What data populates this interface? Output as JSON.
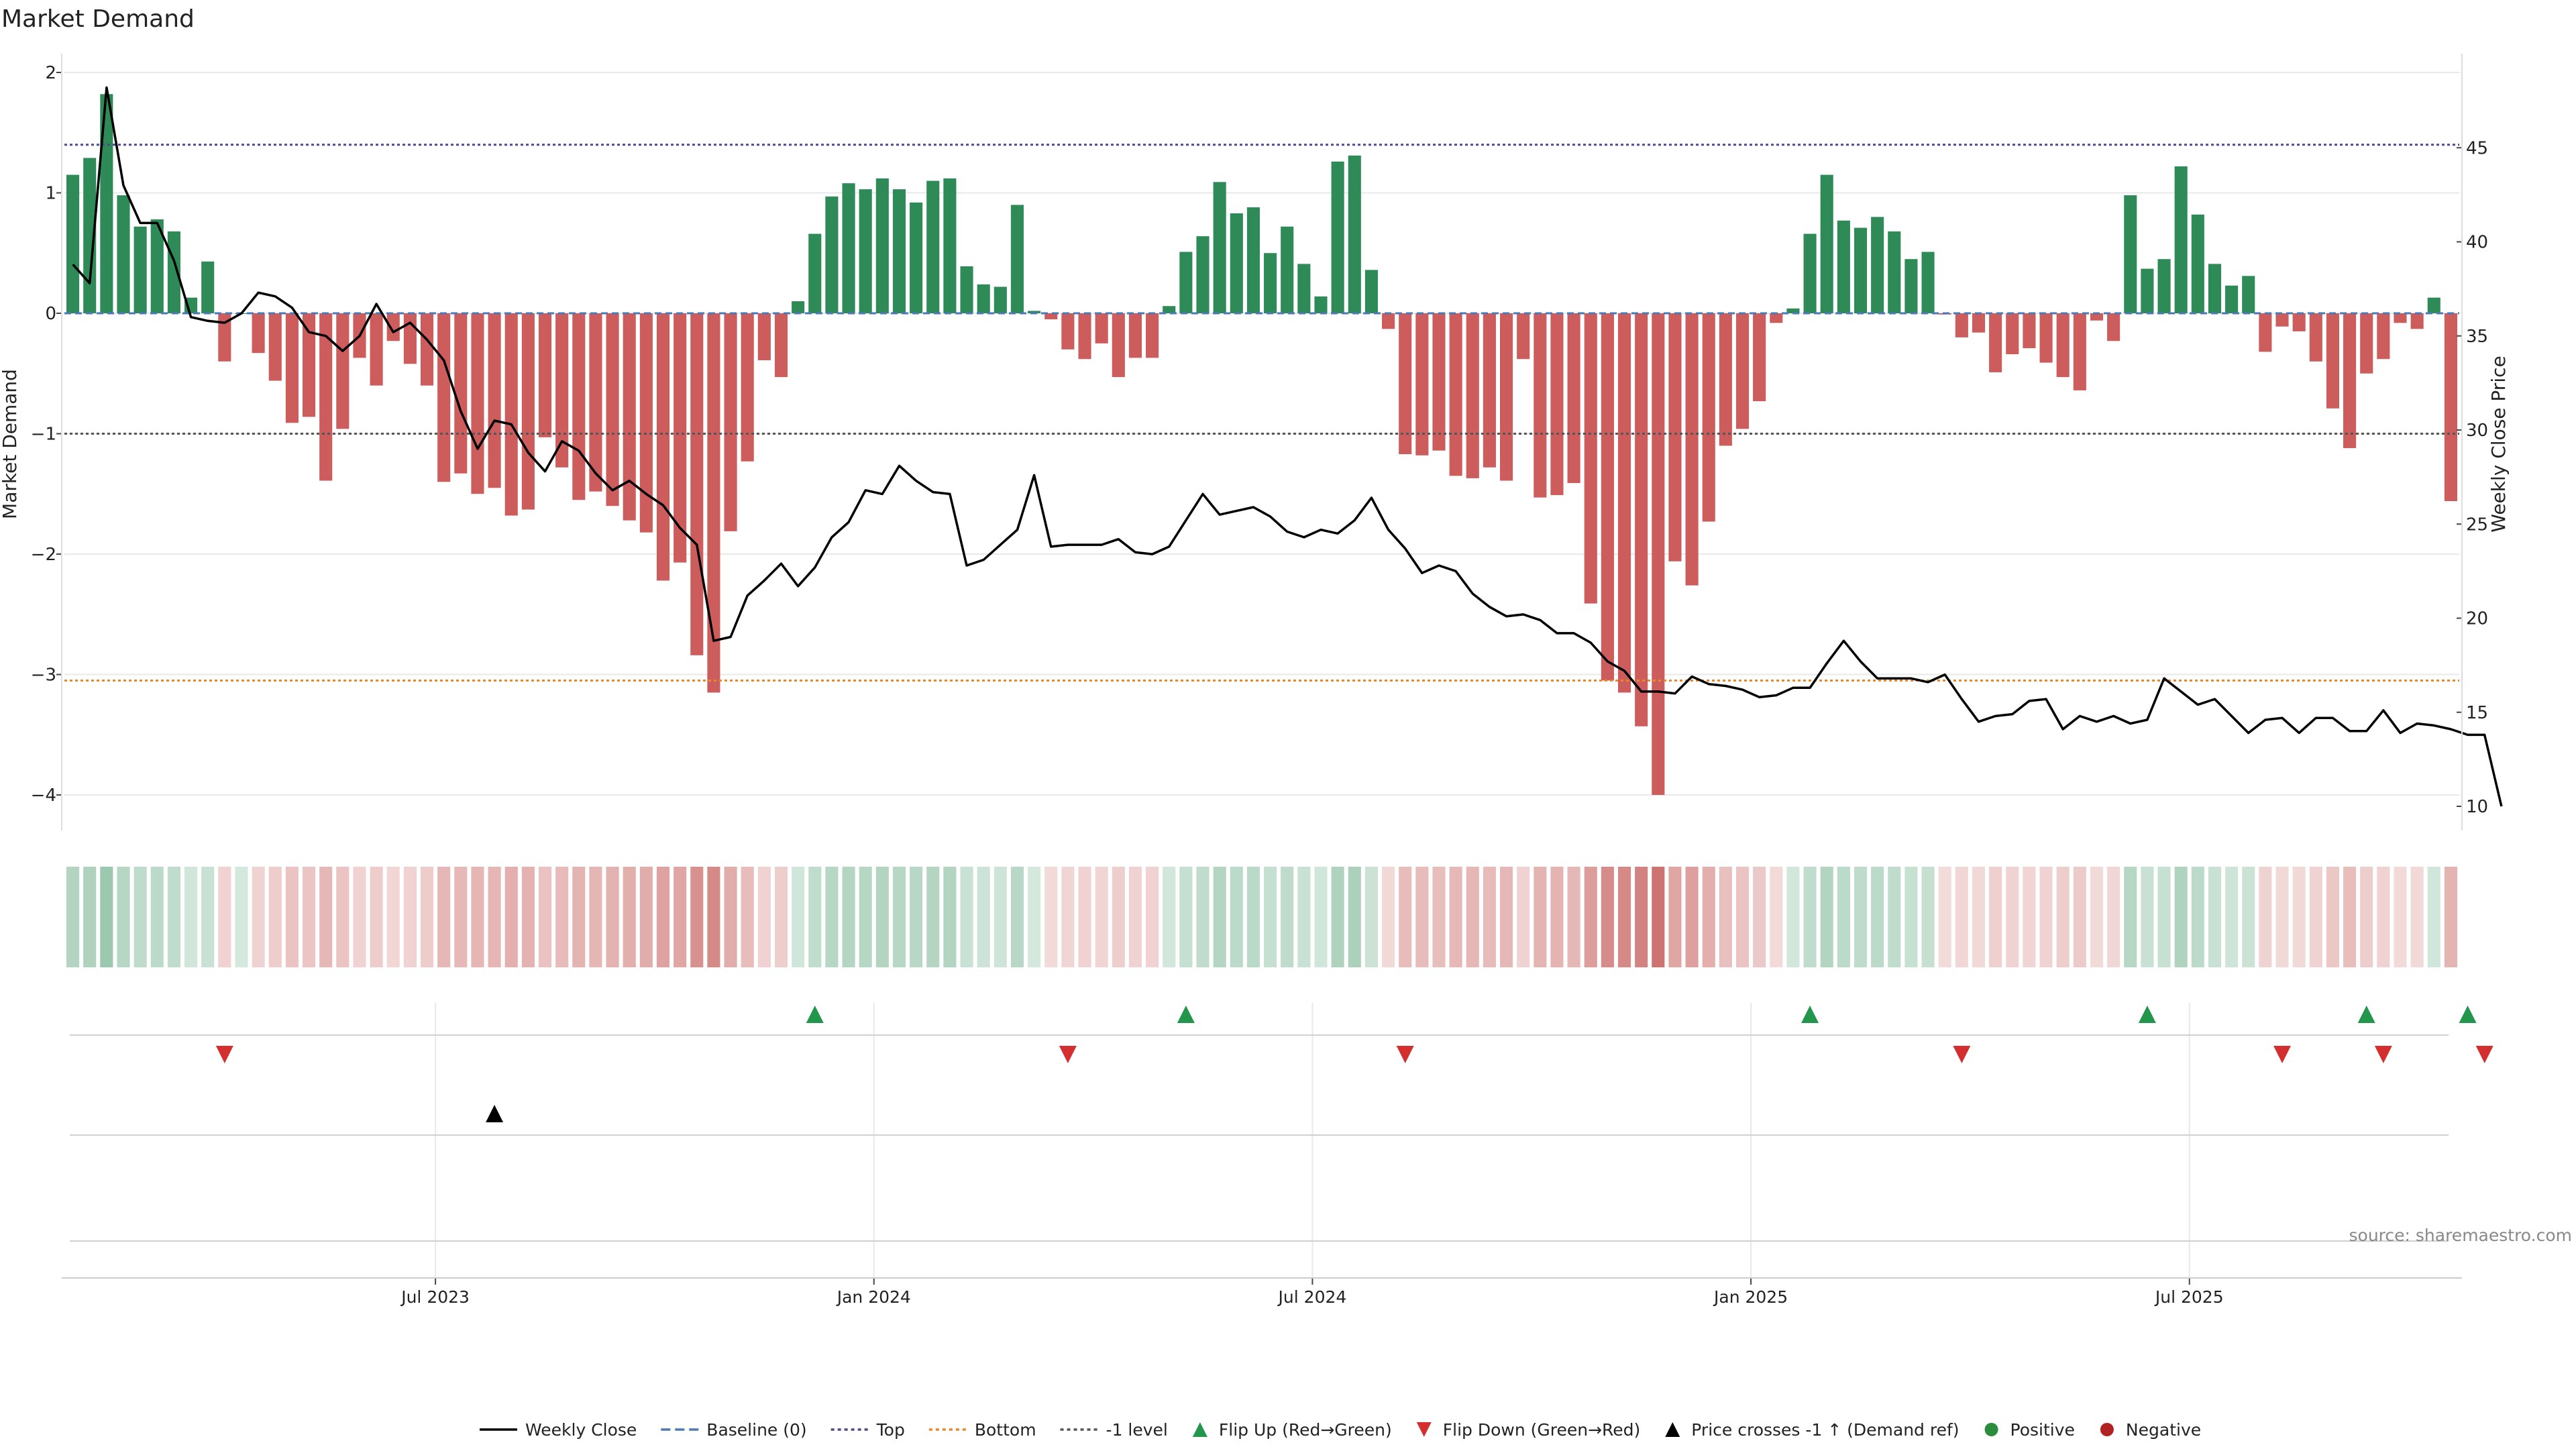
{
  "chart_data": {
    "type": "bar",
    "title": "Market Demand",
    "ylabel_left": "Market Demand",
    "ylabel_right": "Weekly Close Price",
    "source": "source: sharemaestro.com",
    "ylim_left": [
      -4.15,
      2.0
    ],
    "yticks_left": [
      {
        "v": 2,
        "t": "2"
      },
      {
        "v": 1,
        "t": "1"
      },
      {
        "v": 0,
        "t": "0"
      },
      {
        "v": -1,
        "t": "−1"
      },
      {
        "v": -2,
        "t": "−2"
      },
      {
        "v": -3,
        "t": "−3"
      },
      {
        "v": -4,
        "t": "−4"
      }
    ],
    "ylim_right": [
      9.0,
      48.0
    ],
    "yticks_right": [
      45,
      40,
      35,
      30,
      25,
      20,
      15,
      10
    ],
    "x_ticks": [
      {
        "label": "Jul 2023",
        "week": 22
      },
      {
        "label": "Jan 2024",
        "week": 48
      },
      {
        "label": "Jul 2024",
        "week": 74
      },
      {
        "label": "Jan 2025",
        "week": 100
      },
      {
        "label": "Jul 2025",
        "week": 126
      }
    ],
    "reference_lines": {
      "top": 1.4,
      "bottom": -3.05,
      "minus_one": -1.0
    },
    "demand": [
      1.15,
      1.29,
      1.82,
      0.98,
      0.72,
      0.78,
      0.68,
      0.13,
      0.43,
      -0.4,
      0.0,
      -0.33,
      -0.56,
      -0.91,
      -0.86,
      -1.39,
      -0.96,
      -0.37,
      -0.6,
      -0.23,
      -0.42,
      -0.6,
      -1.4,
      -1.33,
      -1.5,
      -1.45,
      -1.68,
      -1.63,
      -1.03,
      -1.28,
      -1.55,
      -1.48,
      -1.6,
      -1.72,
      -1.82,
      -2.22,
      -2.07,
      -2.84,
      -3.15,
      -1.81,
      -1.23,
      -0.39,
      -0.53,
      0.1,
      0.66,
      0.97,
      1.08,
      1.03,
      1.12,
      1.03,
      0.92,
      1.1,
      1.12,
      0.39,
      0.24,
      0.22,
      0.9,
      0.02,
      -0.05,
      -0.3,
      -0.38,
      -0.25,
      -0.53,
      -0.37,
      -0.37,
      0.06,
      0.51,
      0.64,
      1.09,
      0.83,
      0.88,
      0.5,
      0.72,
      0.41,
      0.14,
      1.26,
      1.31,
      0.36,
      -0.13,
      -1.17,
      -1.18,
      -1.14,
      -1.35,
      -1.37,
      -1.28,
      -1.39,
      -0.38,
      -1.53,
      -1.51,
      -1.41,
      -2.41,
      -3.05,
      -3.15,
      -3.43,
      -4.0,
      -2.06,
      -2.26,
      -1.73,
      -1.1,
      -0.96,
      -0.73,
      -0.08,
      0.04,
      0.66,
      1.15,
      0.77,
      0.71,
      0.8,
      0.68,
      0.45,
      0.51,
      -0.01,
      -0.2,
      -0.16,
      -0.49,
      -0.34,
      -0.29,
      -0.41,
      -0.53,
      -0.64,
      -0.06,
      -0.23,
      0.98,
      0.37,
      0.45,
      1.22,
      0.82,
      0.41,
      0.23,
      0.31,
      -0.32,
      -0.11,
      -0.15,
      -0.4,
      -0.79,
      -1.12,
      -0.5,
      -0.38,
      -0.08,
      -0.13,
      0.13,
      -1.56
    ],
    "weekly_close": [
      38.8,
      37.8,
      48.2,
      43.0,
      41.0,
      41.0,
      39.0,
      36.0,
      35.8,
      35.7,
      36.2,
      37.3,
      37.1,
      36.5,
      35.2,
      35.0,
      34.2,
      35.0,
      36.7,
      35.2,
      35.7,
      34.8,
      33.7,
      31.0,
      29.0,
      30.5,
      30.3,
      28.8,
      27.8,
      29.4,
      28.9,
      27.7,
      26.8,
      27.3,
      26.6,
      26.0,
      24.8,
      23.9,
      18.8,
      19.0,
      21.2,
      22.0,
      22.9,
      21.7,
      22.7,
      24.3,
      25.1,
      26.8,
      26.6,
      28.1,
      27.3,
      26.7,
      26.6,
      22.8,
      23.1,
      23.9,
      24.7,
      27.6,
      23.8,
      23.9,
      23.9,
      23.9,
      24.2,
      23.5,
      23.4,
      23.8,
      25.2,
      26.6,
      25.5,
      25.7,
      25.9,
      25.4,
      24.6,
      24.3,
      24.7,
      24.5,
      25.2,
      26.4,
      24.7,
      23.7,
      22.4,
      22.8,
      22.5,
      21.3,
      20.6,
      20.1,
      20.2,
      19.9,
      19.2,
      19.2,
      18.7,
      17.7,
      17.2,
      16.1,
      16.1,
      16.0,
      16.9,
      16.5,
      16.4,
      16.2,
      15.8,
      15.9,
      16.3,
      16.3,
      17.6,
      18.8,
      17.7,
      16.8,
      16.8,
      16.8,
      16.6,
      17.0,
      15.7,
      14.5,
      14.8,
      14.9,
      15.6,
      15.7,
      14.1,
      14.8,
      14.5,
      14.8,
      14.4,
      14.6,
      16.8,
      16.1,
      15.4,
      15.7,
      14.8,
      13.9,
      14.6,
      14.7,
      13.9,
      14.7,
      14.7,
      14.0,
      14.0,
      15.1,
      13.9,
      14.4,
      14.3,
      14.1,
      13.8,
      13.8,
      10.0
    ],
    "flip_up_weeks": [
      44,
      66,
      103,
      123,
      136,
      142
    ],
    "flip_down_weeks": [
      9,
      59,
      79,
      112,
      131,
      137,
      143
    ],
    "price_cross_weeks": [
      25
    ],
    "legend": [
      {
        "label": "Weekly Close",
        "kind": "line",
        "color": "#000000"
      },
      {
        "label": "Baseline (0)",
        "kind": "dash",
        "color": "#4a78b8"
      },
      {
        "label": "Top",
        "kind": "dot",
        "color": "#4b4b8a"
      },
      {
        "label": "Bottom",
        "kind": "dot",
        "color": "#e8892c"
      },
      {
        "label": "-1 level",
        "kind": "dot",
        "color": "#555555"
      },
      {
        "label": "Flip Up (Red→Green)",
        "kind": "tri-up",
        "color": "#22964a"
      },
      {
        "label": "Flip Down (Green→Red)",
        "kind": "tri-down",
        "color": "#d32f2f"
      },
      {
        "label": "Price crosses -1 ↑ (Demand ref)",
        "kind": "tri-up",
        "color": "#000000"
      },
      {
        "label": "Positive",
        "kind": "dot-marker",
        "color": "#2a8c3c"
      },
      {
        "label": "Negative",
        "kind": "dot-marker",
        "color": "#b22222"
      }
    ],
    "colors": {
      "positive": "#2e8b57",
      "negative": "#cd5c5c",
      "price": "#000000",
      "flip_up": "#22964a",
      "flip_down": "#d32f2f",
      "cross": "#000000",
      "grid": "#e8e8e8",
      "heat_pos": "#2e8b57",
      "heat_neg": "#c0504d"
    }
  }
}
